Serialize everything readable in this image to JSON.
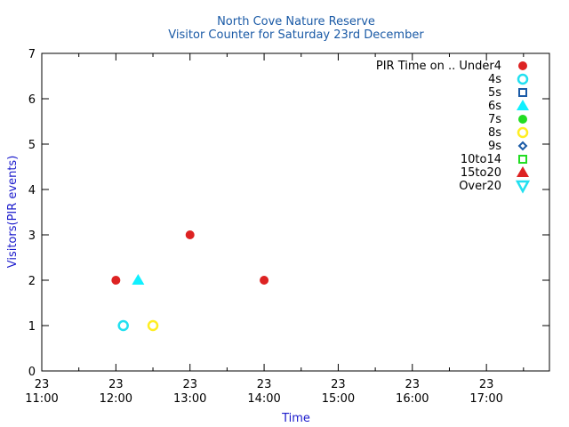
{
  "chart_data": {
    "type": "scatter",
    "title": "North Cove Nature Reserve",
    "subtitle": "Visitor Counter for Saturday 23rd December",
    "xlabel": "Time",
    "ylabel": "Visitors(PIR events)",
    "xlim": [
      11.0,
      17.85
    ],
    "ylim": [
      0,
      7
    ],
    "y_ticks": [
      0,
      1,
      2,
      3,
      4,
      5,
      6,
      7
    ],
    "x_ticks": [
      {
        "value": 11,
        "day": "23",
        "time": "11:00"
      },
      {
        "value": 12,
        "day": "23",
        "time": "12:00"
      },
      {
        "value": 13,
        "day": "23",
        "time": "13:00"
      },
      {
        "value": 14,
        "day": "23",
        "time": "14:00"
      },
      {
        "value": 15,
        "day": "23",
        "time": "15:00"
      },
      {
        "value": 16,
        "day": "23",
        "time": "16:00"
      },
      {
        "value": 17,
        "day": "23",
        "time": "17:00"
      }
    ],
    "grid": false,
    "legend_position": "top-right",
    "series": [
      {
        "name": "PIR Time on .. Under4",
        "marker": "filled-circle",
        "color": "#dd2222",
        "points": [
          {
            "x": "12:00",
            "y": 2
          },
          {
            "x": "13:00",
            "y": 3
          },
          {
            "x": "14:00",
            "y": 2
          }
        ]
      },
      {
        "name": "4s",
        "marker": "open-circle",
        "color": "#22e0f0",
        "points": [
          {
            "x": "12:06",
            "y": 1
          }
        ]
      },
      {
        "name": "5s",
        "marker": "open-square",
        "color": "#1a5aa6",
        "points": []
      },
      {
        "name": "6s",
        "marker": "filled-triangle",
        "color": "#11f0ff",
        "points": [
          {
            "x": "12:18",
            "y": 2
          }
        ]
      },
      {
        "name": "7s",
        "marker": "filled-circle",
        "color": "#22dd22",
        "points": []
      },
      {
        "name": "8s",
        "marker": "open-circle",
        "color": "#ffee22",
        "points": [
          {
            "x": "12:30",
            "y": 1
          }
        ]
      },
      {
        "name": "9s",
        "marker": "open-diamond",
        "color": "#1a5aa6",
        "points": []
      },
      {
        "name": "10to14",
        "marker": "open-square",
        "color": "#22dd22",
        "points": []
      },
      {
        "name": "15to20",
        "marker": "filled-triangle",
        "color": "#dd2222",
        "points": []
      },
      {
        "name": "Over20",
        "marker": "open-triangle-down",
        "color": "#22e0f0",
        "points": []
      }
    ]
  }
}
